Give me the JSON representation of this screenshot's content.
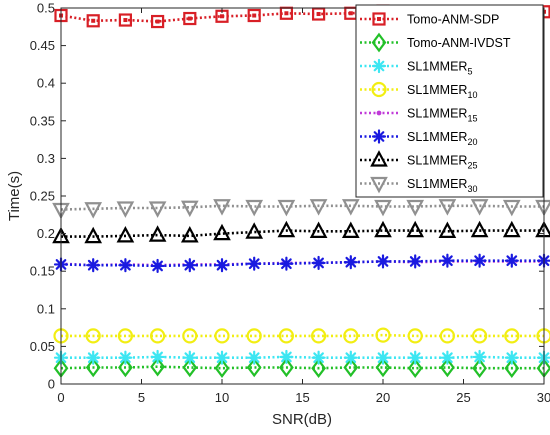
{
  "chart_data": {
    "type": "line",
    "xlabel": "SNR(dB)",
    "ylabel": "Time(s)",
    "xlim": [
      0,
      30
    ],
    "ylim": [
      0,
      0.5
    ],
    "x_ticks": [
      0,
      5,
      10,
      15,
      20,
      25,
      30
    ],
    "y_ticks": [
      0,
      0.05,
      0.1,
      0.15,
      0.2,
      0.25,
      0.3,
      0.35,
      0.4,
      0.45,
      0.5
    ],
    "x_tick_labels": [
      "0",
      "5",
      "10",
      "15",
      "20",
      "25",
      "30"
    ],
    "y_tick_labels": [
      "0",
      "0.05",
      "0.1",
      "0.15",
      "0.2",
      "0.25",
      "0.3",
      "0.35",
      "0.4",
      "0.45",
      "0.5"
    ],
    "grid": false,
    "legend_position": "top-right",
    "x": [
      0,
      2,
      4,
      6,
      8,
      10,
      12,
      14,
      16,
      18,
      20,
      22,
      24,
      26,
      28,
      30
    ],
    "series": [
      {
        "name": "Tomo-ANM-SDP",
        "sub": "",
        "color": "#d81f26",
        "marker": "square",
        "values": [
          0.49,
          0.483,
          0.484,
          0.482,
          0.486,
          0.489,
          0.49,
          0.493,
          0.492,
          0.493,
          0.496,
          0.495,
          0.495,
          0.495,
          0.495,
          0.495
        ]
      },
      {
        "name": "Tomo-ANM-IVDST",
        "sub": "",
        "color": "#22c028",
        "marker": "diamond",
        "values": [
          0.021,
          0.022,
          0.022,
          0.023,
          0.022,
          0.021,
          0.022,
          0.022,
          0.021,
          0.022,
          0.022,
          0.021,
          0.022,
          0.021,
          0.021,
          0.021
        ]
      },
      {
        "name": "SL1MMER",
        "sub": "5",
        "color": "#3de6f2",
        "marker": "asterisk",
        "values": [
          0.035,
          0.035,
          0.035,
          0.036,
          0.035,
          0.035,
          0.035,
          0.036,
          0.035,
          0.035,
          0.035,
          0.035,
          0.035,
          0.036,
          0.035,
          0.035
        ]
      },
      {
        "name": "SL1MMER",
        "sub": "10",
        "color": "#f2ee12",
        "marker": "circle",
        "values": [
          0.064,
          0.064,
          0.064,
          0.064,
          0.064,
          0.064,
          0.064,
          0.064,
          0.064,
          0.064,
          0.065,
          0.064,
          0.064,
          0.064,
          0.064,
          0.064
        ]
      },
      {
        "name": "SL1MMER",
        "sub": "15",
        "color": "#c03ad8",
        "marker": "dot",
        "values": [
          0.16,
          0.158,
          0.159,
          0.158,
          0.159,
          0.159,
          0.16,
          0.161,
          0.161,
          0.162,
          0.163,
          0.162,
          0.163,
          0.163,
          0.163,
          0.163
        ]
      },
      {
        "name": "SL1MMER",
        "sub": "20",
        "color": "#1a1ae0",
        "marker": "asterisk",
        "values": [
          0.159,
          0.158,
          0.158,
          0.157,
          0.158,
          0.158,
          0.16,
          0.16,
          0.161,
          0.162,
          0.163,
          0.163,
          0.164,
          0.164,
          0.164,
          0.164
        ]
      },
      {
        "name": "SL1MMER",
        "sub": "25",
        "color": "#000000",
        "marker": "triangle-up",
        "values": [
          0.196,
          0.196,
          0.197,
          0.198,
          0.197,
          0.2,
          0.202,
          0.204,
          0.203,
          0.203,
          0.204,
          0.204,
          0.203,
          0.204,
          0.204,
          0.204
        ]
      },
      {
        "name": "SL1MMER",
        "sub": "30",
        "color": "#909090",
        "marker": "triangle-down",
        "values": [
          0.232,
          0.233,
          0.234,
          0.234,
          0.235,
          0.237,
          0.236,
          0.236,
          0.237,
          0.237,
          0.236,
          0.236,
          0.237,
          0.237,
          0.236,
          0.236
        ]
      }
    ]
  }
}
